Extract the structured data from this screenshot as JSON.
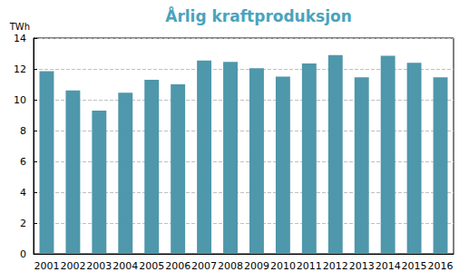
{
  "chart_data": {
    "type": "bar",
    "title": "Årlig kraftproduksjon",
    "y_label": "TWh",
    "categories": [
      "2001",
      "2002",
      "2003",
      "2004",
      "2005",
      "2006",
      "2007",
      "2008",
      "2009",
      "2010",
      "2011",
      "2012",
      "2013",
      "2014",
      "2015",
      "2016"
    ],
    "values": [
      11.85,
      10.6,
      9.3,
      10.45,
      11.3,
      11.0,
      12.55,
      12.45,
      12.05,
      11.5,
      12.35,
      12.9,
      11.45,
      12.85,
      12.4,
      11.45
    ],
    "color": "#4f97ab",
    "ylim": [
      0,
      14
    ],
    "yticks": [
      0,
      2,
      4,
      6,
      8,
      10,
      12,
      14
    ],
    "grid": true
  }
}
